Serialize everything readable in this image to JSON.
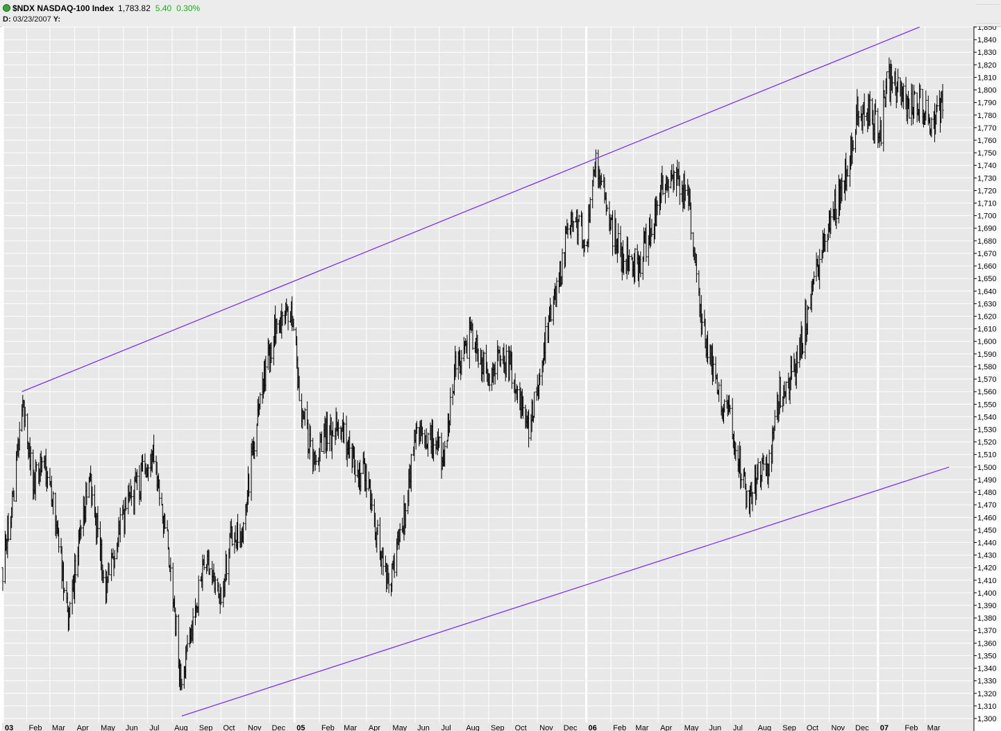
{
  "header": {
    "symbol_name": "$NDX NASDAQ-100 Index",
    "last": "1,783.82",
    "change": "5.40",
    "change_pct": "0.30%",
    "date_label": "D:",
    "date_value": "03/23/2007",
    "y_label": "Y:"
  },
  "colors": {
    "plot_bg": "#e8e8e8",
    "grid": "#ffffff",
    "bars": "#000000",
    "trendline": "#7a2ff0",
    "up": "#19b319"
  },
  "chart_data": {
    "type": "ohlc",
    "y_ticks": [
      1300,
      1310,
      1320,
      1330,
      1340,
      1350,
      1360,
      1370,
      1380,
      1390,
      1400,
      1410,
      1420,
      1430,
      1440,
      1450,
      1460,
      1470,
      1480,
      1490,
      1500,
      1510,
      1520,
      1530,
      1540,
      1550,
      1560,
      1570,
      1580,
      1590,
      1600,
      1610,
      1620,
      1630,
      1640,
      1650,
      1660,
      1670,
      1680,
      1690,
      1700,
      1710,
      1720,
      1730,
      1740,
      1750,
      1760,
      1770,
      1780,
      1790,
      1800,
      1810,
      1820,
      1830,
      1840,
      1850
    ],
    "y_tick_labels": [
      "1,300",
      "1,310",
      "1,320",
      "1,330",
      "1,340",
      "1,350",
      "1,360",
      "1,370",
      "1,380",
      "1,390",
      "1,400",
      "1,410",
      "1,420",
      "1,430",
      "1,440",
      "1,450",
      "1,460",
      "1,470",
      "1,480",
      "1,490",
      "1,500",
      "1,510",
      "1,520",
      "1,530",
      "1,540",
      "1,550",
      "1,560",
      "1,570",
      "1,580",
      "1,590",
      "1,600",
      "1,610",
      "1,620",
      "1,630",
      "1,640",
      "1,650",
      "1,660",
      "1,670",
      "1,680",
      "1,690",
      "1,700",
      "1,710",
      "1,720",
      "1,730",
      "1,740",
      "1,750",
      "1,760",
      "1,770",
      "1,780",
      "1,790",
      "1,800",
      "1,810",
      "1,820",
      "1,830",
      "1,840",
      "1,850"
    ],
    "ylim": [
      1300,
      1850
    ],
    "x_ticks": [
      {
        "label": "03",
        "bold": true
      },
      {
        "label": "Feb",
        "bold": false
      },
      {
        "label": "Mar",
        "bold": false
      },
      {
        "label": "Apr",
        "bold": false
      },
      {
        "label": "May",
        "bold": false
      },
      {
        "label": "Jun",
        "bold": false
      },
      {
        "label": "Jul",
        "bold": false
      },
      {
        "label": "Aug",
        "bold": false
      },
      {
        "label": "Sep",
        "bold": false
      },
      {
        "label": "Oct",
        "bold": false
      },
      {
        "label": "Nov",
        "bold": false
      },
      {
        "label": "Dec",
        "bold": false
      },
      {
        "label": "05",
        "bold": true
      },
      {
        "label": "Feb",
        "bold": false
      },
      {
        "label": "Mar",
        "bold": false
      },
      {
        "label": "Apr",
        "bold": false
      },
      {
        "label": "May",
        "bold": false
      },
      {
        "label": "Jun",
        "bold": false
      },
      {
        "label": "Jul",
        "bold": false
      },
      {
        "label": "Aug",
        "bold": false
      },
      {
        "label": "Sep",
        "bold": false
      },
      {
        "label": "Oct",
        "bold": false
      },
      {
        "label": "Nov",
        "bold": false
      },
      {
        "label": "Dec",
        "bold": false
      },
      {
        "label": "06",
        "bold": true
      },
      {
        "label": "Feb",
        "bold": false
      },
      {
        "label": "Mar",
        "bold": false
      },
      {
        "label": "Apr",
        "bold": false
      },
      {
        "label": "May",
        "bold": false
      },
      {
        "label": "Jun",
        "bold": false
      },
      {
        "label": "Jul",
        "bold": false
      },
      {
        "label": "Aug",
        "bold": false
      },
      {
        "label": "Sep",
        "bold": false
      },
      {
        "label": "Oct",
        "bold": false
      },
      {
        "label": "Nov",
        "bold": false
      },
      {
        "label": "Dec",
        "bold": false
      },
      {
        "label": "07",
        "bold": true
      },
      {
        "label": "Feb",
        "bold": false
      },
      {
        "label": "Mar",
        "bold": false
      }
    ],
    "x_domain": [
      "2004-01-02",
      "2007-03-23"
    ],
    "path_anchors": [
      [
        "2004-01-02",
        1420
      ],
      [
        "2004-01-14",
        1470
      ],
      [
        "2004-01-26",
        1555
      ],
      [
        "2004-02-10",
        1490
      ],
      [
        "2004-02-20",
        1505
      ],
      [
        "2004-03-09",
        1455
      ],
      [
        "2004-03-24",
        1375
      ],
      [
        "2004-04-06",
        1440
      ],
      [
        "2004-04-19",
        1490
      ],
      [
        "2004-05-10",
        1405
      ],
      [
        "2004-06-01",
        1460
      ],
      [
        "2004-06-23",
        1490
      ],
      [
        "2004-07-09",
        1505
      ],
      [
        "2004-07-30",
        1425
      ],
      [
        "2004-08-12",
        1325
      ],
      [
        "2004-08-30",
        1390
      ],
      [
        "2004-09-15",
        1430
      ],
      [
        "2004-09-30",
        1395
      ],
      [
        "2004-10-14",
        1445
      ],
      [
        "2004-10-29",
        1450
      ],
      [
        "2004-11-16",
        1545
      ],
      [
        "2004-12-08",
        1615
      ],
      [
        "2004-12-29",
        1625
      ],
      [
        "2005-01-07",
        1560
      ],
      [
        "2005-01-24",
        1500
      ],
      [
        "2005-02-10",
        1525
      ],
      [
        "2005-03-01",
        1530
      ],
      [
        "2005-03-22",
        1500
      ],
      [
        "2005-04-06",
        1480
      ],
      [
        "2005-04-20",
        1420
      ],
      [
        "2005-04-29",
        1410
      ],
      [
        "2005-05-18",
        1460
      ],
      [
        "2005-06-01",
        1520
      ],
      [
        "2005-06-21",
        1525
      ],
      [
        "2005-07-06",
        1505
      ],
      [
        "2005-07-22",
        1580
      ],
      [
        "2005-08-09",
        1605
      ],
      [
        "2005-08-31",
        1570
      ],
      [
        "2005-09-14",
        1590
      ],
      [
        "2005-10-03",
        1575
      ],
      [
        "2005-10-21",
        1525
      ],
      [
        "2005-11-08",
        1590
      ],
      [
        "2005-11-25",
        1640
      ],
      [
        "2005-12-14",
        1700
      ],
      [
        "2006-01-03",
        1680
      ],
      [
        "2006-01-11",
        1745
      ],
      [
        "2006-01-27",
        1700
      ],
      [
        "2006-02-14",
        1670
      ],
      [
        "2006-03-06",
        1660
      ],
      [
        "2006-03-24",
        1690
      ],
      [
        "2006-04-10",
        1730
      ],
      [
        "2006-04-24",
        1725
      ],
      [
        "2006-05-09",
        1710
      ],
      [
        "2006-05-24",
        1620
      ],
      [
        "2006-06-13",
        1560
      ],
      [
        "2006-06-30",
        1545
      ],
      [
        "2006-07-21",
        1475
      ],
      [
        "2006-08-01",
        1490
      ],
      [
        "2006-08-18",
        1500
      ],
      [
        "2006-08-31",
        1560
      ],
      [
        "2006-09-22",
        1580
      ],
      [
        "2006-10-10",
        1640
      ],
      [
        "2006-10-31",
        1690
      ],
      [
        "2006-11-20",
        1730
      ],
      [
        "2006-12-06",
        1780
      ],
      [
        "2006-12-22",
        1780
      ],
      [
        "2007-01-05",
        1770
      ],
      [
        "2007-01-12",
        1810
      ],
      [
        "2007-01-25",
        1800
      ],
      [
        "2007-02-09",
        1785
      ],
      [
        "2007-02-22",
        1795
      ],
      [
        "2007-03-05",
        1775
      ],
      [
        "2007-03-23",
        1784
      ]
    ],
    "trendlines": [
      {
        "name": "upper",
        "p1": [
          "2004-01-26",
          1560
        ],
        "p2": [
          "2007-02-22",
          1850
        ]
      },
      {
        "name": "lower",
        "p1": [
          "2004-08-13",
          1302
        ],
        "p2": [
          "2007-03-31",
          1500
        ]
      }
    ]
  }
}
